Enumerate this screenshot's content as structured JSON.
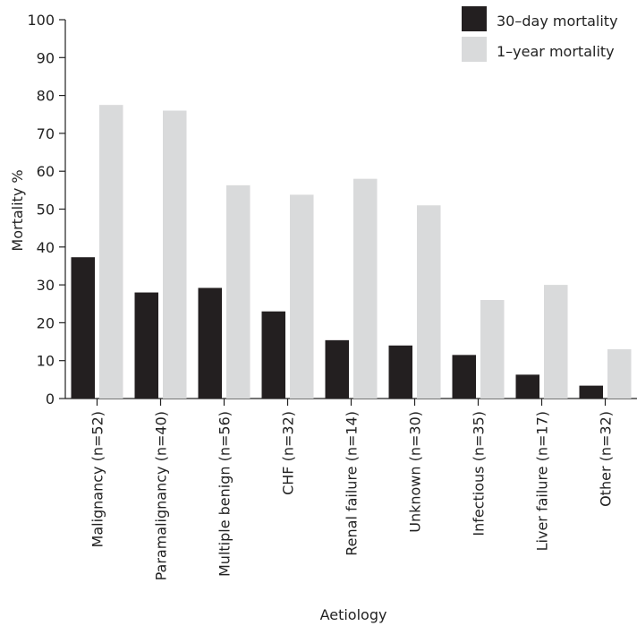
{
  "chart_data": {
    "type": "bar",
    "xlabel": "Aetiology",
    "ylabel": "Mortality %",
    "ylim": [
      0,
      100
    ],
    "yticks": [
      0,
      10,
      20,
      30,
      40,
      50,
      60,
      70,
      80,
      90,
      100
    ],
    "categories": [
      "Malignancy (n=52)",
      "Paramalignancy (n=40)",
      "Multiple benign (n=56)",
      "CHF (n=32)",
      "Renal failure (n=14)",
      "Unknown (n=30)",
      "Infectious (n=35)",
      "Liver failure (n=17)",
      "Other (n=32)"
    ],
    "series": [
      {
        "name": "30–day mortality",
        "color": "#231f20",
        "values": [
          37.3,
          28.0,
          29.2,
          23.0,
          15.4,
          14.0,
          11.5,
          6.3,
          3.4
        ]
      },
      {
        "name": "1–year mortality",
        "color": "#d9dadb",
        "values": [
          77.5,
          76.0,
          56.3,
          53.8,
          58.0,
          51.0,
          26.0,
          30.0,
          13.0
        ]
      }
    ],
    "legend_position": "top-right",
    "grid": false
  }
}
